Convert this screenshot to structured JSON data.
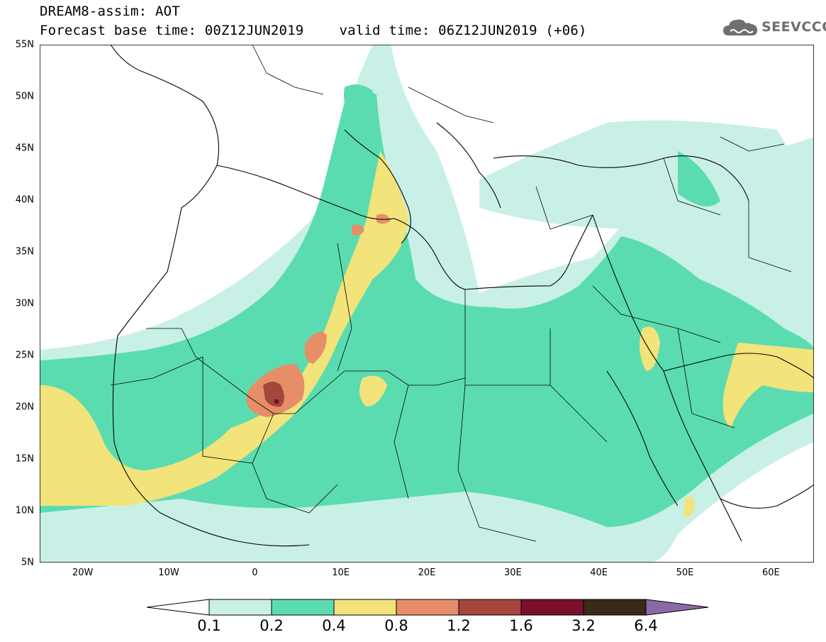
{
  "title": {
    "line1": "DREAM8-assim: AOT",
    "base_time": "Forecast base time: 00Z12JUN2019",
    "valid_time": "valid time: 06Z12JUN2019 (+06)"
  },
  "logo": {
    "text": "SEEVCCC",
    "icon": "cloud-icon"
  },
  "map": {
    "lat_labels": [
      "55N",
      "50N",
      "45N",
      "40N",
      "35N",
      "30N",
      "25N",
      "20N",
      "15N",
      "10N",
      "5N"
    ],
    "lon_labels": [
      "20W",
      "10W",
      "0",
      "10E",
      "20E",
      "30E",
      "40E",
      "50E",
      "60E"
    ],
    "lon_range": [
      -25,
      65
    ],
    "lat_range": [
      5,
      55
    ],
    "field": "Aerosol optical thickness"
  },
  "legend": {
    "ticks": [
      "0.1",
      "0.2",
      "0.4",
      "0.8",
      "1.2",
      "1.6",
      "3.2",
      "6.4"
    ],
    "colors": [
      "#c9f0e6",
      "#5bdcb0",
      "#f2e37a",
      "#e68e68",
      "#a4463c",
      "#7a0f2e",
      "#3a2a16"
    ],
    "under_color": "#ffffff",
    "over_color": "#8a6aa6"
  }
}
